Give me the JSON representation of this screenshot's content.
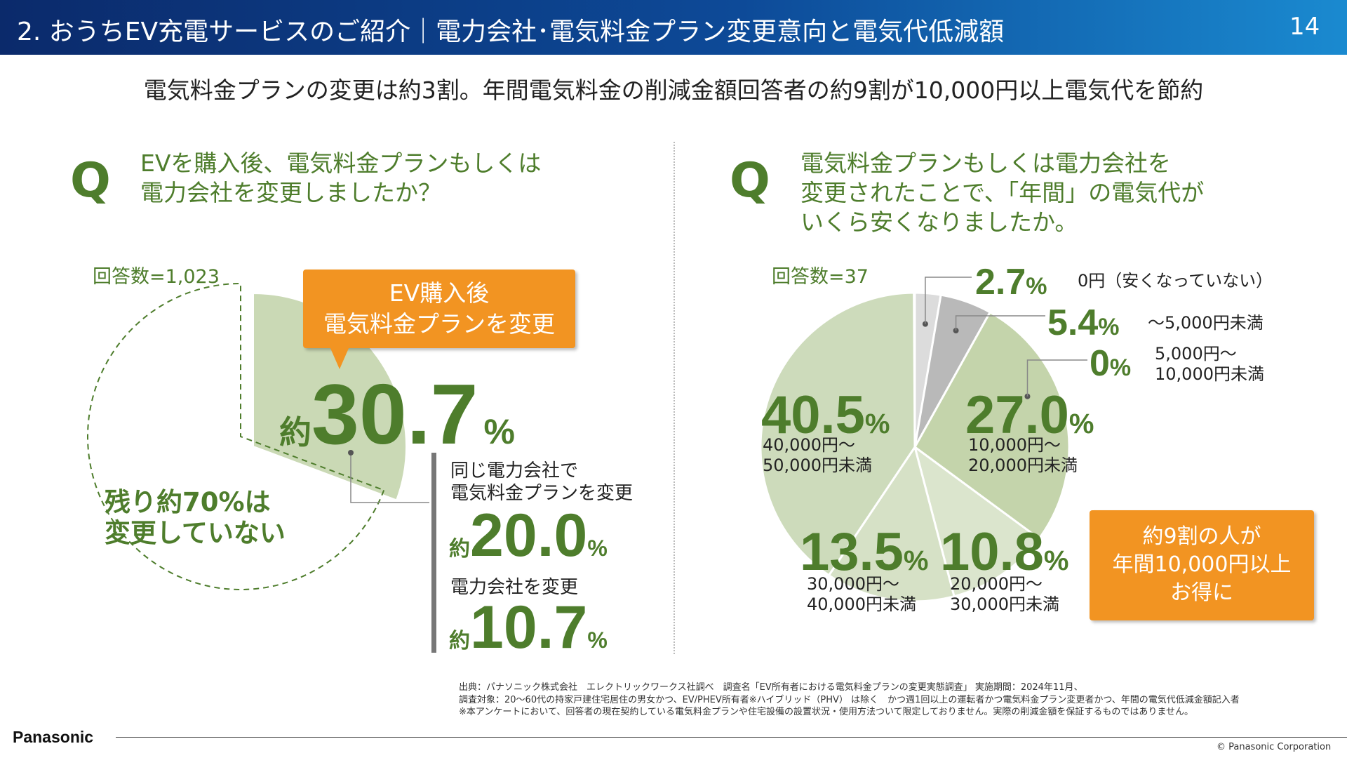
{
  "header": {
    "title": "2. おうちEV充電サービスのご紹介｜電力会社･電気料金プラン変更意向と電気代低減額",
    "page_number": "14"
  },
  "subtitle": "電気料金プランの変更は約3割。年間電気料金の削減金額回答者の約9割が10,000円以上電気代を節約",
  "left": {
    "q_mark": "Q",
    "question": [
      "EVを購入後、電気料金プランもしくは",
      "電力会社を変更しましたか？"
    ],
    "respondents": "回答数=1,023",
    "callout": [
      "EV購入後",
      "電気料金プランを変更"
    ],
    "main_prefix": "約",
    "main_value": "30.7",
    "main_unit": "%",
    "remainder": [
      "残り約70%は",
      "変更していない"
    ],
    "breakdown": [
      {
        "label": "同じ電力会社で",
        "label2": "電気料金プランを変更",
        "prefix": "約",
        "value": "20.0",
        "unit": "%"
      },
      {
        "label": "電力会社を変更",
        "prefix": "約",
        "value": "10.7",
        "unit": "%"
      }
    ]
  },
  "right": {
    "q_mark": "Q",
    "question": [
      "電気料金プランもしくは電力会社を",
      "変更されたことで、「年間」の電気代が",
      "いくら安くなりましたか。"
    ],
    "respondents": "回答数=37",
    "callout": [
      "約9割の人が",
      "年間10,000円以上",
      "お得に"
    ]
  },
  "chart_data": [
    {
      "type": "pie",
      "title": "",
      "slices": [
        {
          "label": "変更した",
          "value": 30.7
        },
        {
          "label": "変更していない",
          "value": 69.3
        }
      ]
    },
    {
      "type": "pie",
      "title": "",
      "slices": [
        {
          "label": "0円（安くなっていない）",
          "value": 2.7,
          "display": "2.7",
          "color": "#dcdcdc"
        },
        {
          "label": "～5,000円未満",
          "value": 5.4,
          "display": "5.4",
          "color": "#b9b9b9"
        },
        {
          "label": "5,000円～10,000円未満",
          "value": 0,
          "display": "0",
          "color": "#c6d6ae"
        },
        {
          "label": "10,000円～20,000円未満",
          "value": 27.0,
          "display": "27.0",
          "color": "#c4d4ab"
        },
        {
          "label": "20,000円～30,000円未満",
          "value": 10.8,
          "display": "10.8",
          "color": "#dbe5cd"
        },
        {
          "label": "30,000円～40,000円未満",
          "value": 13.5,
          "display": "13.5",
          "color": "#d6e1c6"
        },
        {
          "label": "40,000円～50,000円未満",
          "value": 40.5,
          "display": "40.5",
          "color": "#cddbbb"
        }
      ]
    }
  ],
  "labels": {
    "s0_l1": "0円（安くなっていない）",
    "s1_l1": "～5,000円未満",
    "s2_l1": "5,000円～",
    "s2_l2": "10,000円未満",
    "s3_l1": "10,000円～",
    "s3_l2": "20,000円未満",
    "s4_l1": "20,000円～",
    "s4_l2": "30,000円未満",
    "s5_l1": "30,000円～",
    "s5_l2": "40,000円未満",
    "s6_l1": "40,000円～",
    "s6_l2": "50,000円未満",
    "pct": "%"
  },
  "footnote": [
    "出典：パナソニック株式会社　エレクトリックワークス社調べ　調査名「EV所有者における電気料金プランの変更実態調査」 実施期間：2024年11月、",
    "調査対象：20～60代の持家戸建住宅居住の男女かつ、EV/PHEV所有者※ハイブリッド（PHV） は除く　かつ週1回以上の運転者かつ電気料金プラン変更者かつ、年間の電気代低減金額記入者",
    "※本アンケートにおいて、回答者の現在契約している電気料金プランや住宅設備の設置状況・使用方法ついて限定しておりません。実際の削減金額を保証するものではありません。"
  ],
  "footer": {
    "logo": "Panasonic",
    "copyright": "© Panasonic Corporation"
  },
  "colors": {
    "green": "#4e7d2c",
    "orange": "#f29422",
    "header": "#0b2a6b"
  }
}
